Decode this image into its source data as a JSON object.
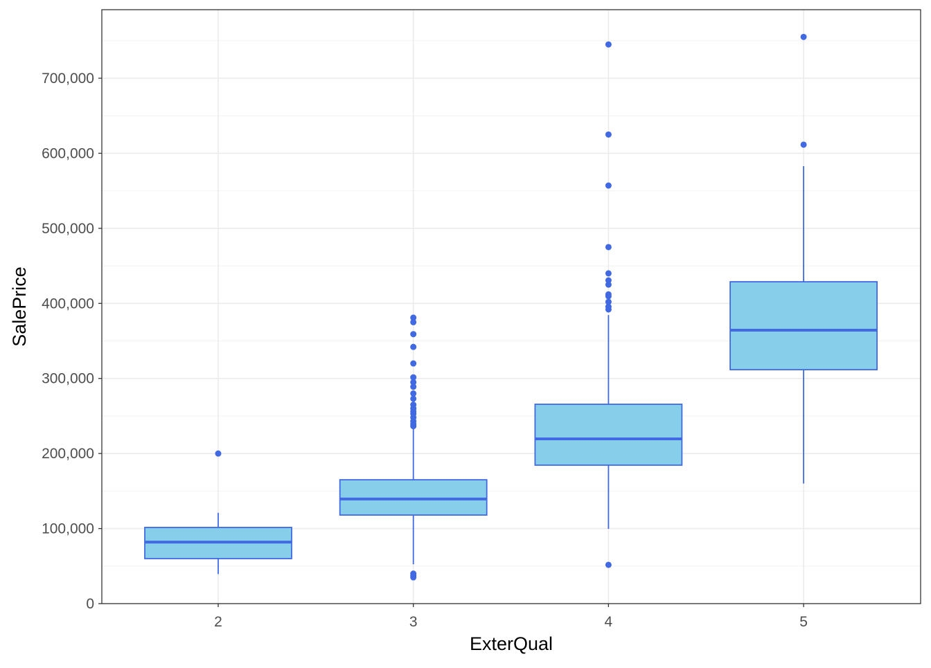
{
  "chart_data": {
    "type": "boxplot",
    "title": "",
    "xlabel": "ExterQual",
    "ylabel": "SalePrice",
    "categories": [
      "2",
      "3",
      "4",
      "5"
    ],
    "ylim": [
      -8000,
      790000
    ],
    "yticks": [
      0,
      100000,
      200000,
      300000,
      400000,
      500000,
      600000,
      700000
    ],
    "ytick_labels": [
      "0",
      "100,000",
      "200,000",
      "300,000",
      "400,000",
      "500,000",
      "600,000",
      "700,000"
    ],
    "grid": true,
    "box_fill": "#87CEEB",
    "box_stroke": "#4169E1",
    "boxes": [
      {
        "category": "2",
        "whisker_low": 39300,
        "q1": 60000,
        "median": 82000,
        "q3": 101500,
        "whisker_high": 121000,
        "outliers": [
          200000
        ]
      },
      {
        "category": "3",
        "whisker_low": 52500,
        "q1": 118000,
        "median": 139400,
        "q3": 165000,
        "whisker_high": 233000,
        "outliers": [
          35000,
          37500,
          40000,
          236500,
          239500,
          243000,
          248000,
          253000,
          256000,
          260000,
          265000,
          273000,
          280000,
          289000,
          295000,
          301500,
          320000,
          342000,
          359000,
          375000,
          381000
        ]
      },
      {
        "category": "4",
        "whisker_low": 99600,
        "q1": 184500,
        "median": 219500,
        "q3": 265600,
        "whisker_high": 384500,
        "outliers": [
          51700,
          392000,
          395600,
          402000,
          409500,
          412000,
          425000,
          430700,
          440000,
          475000,
          557000,
          625000,
          745000
        ]
      },
      {
        "category": "5",
        "whisker_low": 160000,
        "q1": 311700,
        "median": 364300,
        "q3": 428800,
        "whisker_high": 582900,
        "outliers": [
          611500,
          755000
        ]
      }
    ]
  }
}
